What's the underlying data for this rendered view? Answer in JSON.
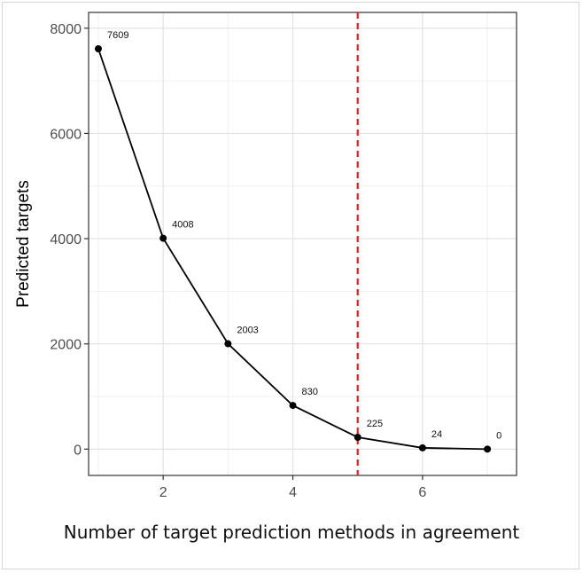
{
  "chart_data": {
    "type": "line",
    "title": "",
    "xlabel": "Number of target prediction methods in agreement",
    "ylabel": "Predicted targets",
    "x": [
      1,
      2,
      3,
      4,
      5,
      6,
      7
    ],
    "series": [
      {
        "values": [
          7609,
          4008,
          2003,
          830,
          225,
          24,
          0
        ]
      }
    ],
    "data_labels": [
      "7609",
      "4008",
      "2003",
      "830",
      "225",
      "24",
      "0"
    ],
    "xlim": [
      0.85,
      7.45
    ],
    "ylim": [
      -500,
      8300
    ],
    "x_ticks": [
      2,
      4,
      6
    ],
    "x_tick_labels": [
      "2",
      "4",
      "6"
    ],
    "y_ticks": [
      0,
      2000,
      4000,
      6000,
      8000
    ],
    "y_tick_labels": [
      "0",
      "2000",
      "4000",
      "6000",
      "8000"
    ],
    "grid": true,
    "reference_line": {
      "axis": "x",
      "value": 5,
      "style": "dashed",
      "color": "#e02020"
    },
    "line_color": "#000000",
    "point_color": "#000000"
  }
}
